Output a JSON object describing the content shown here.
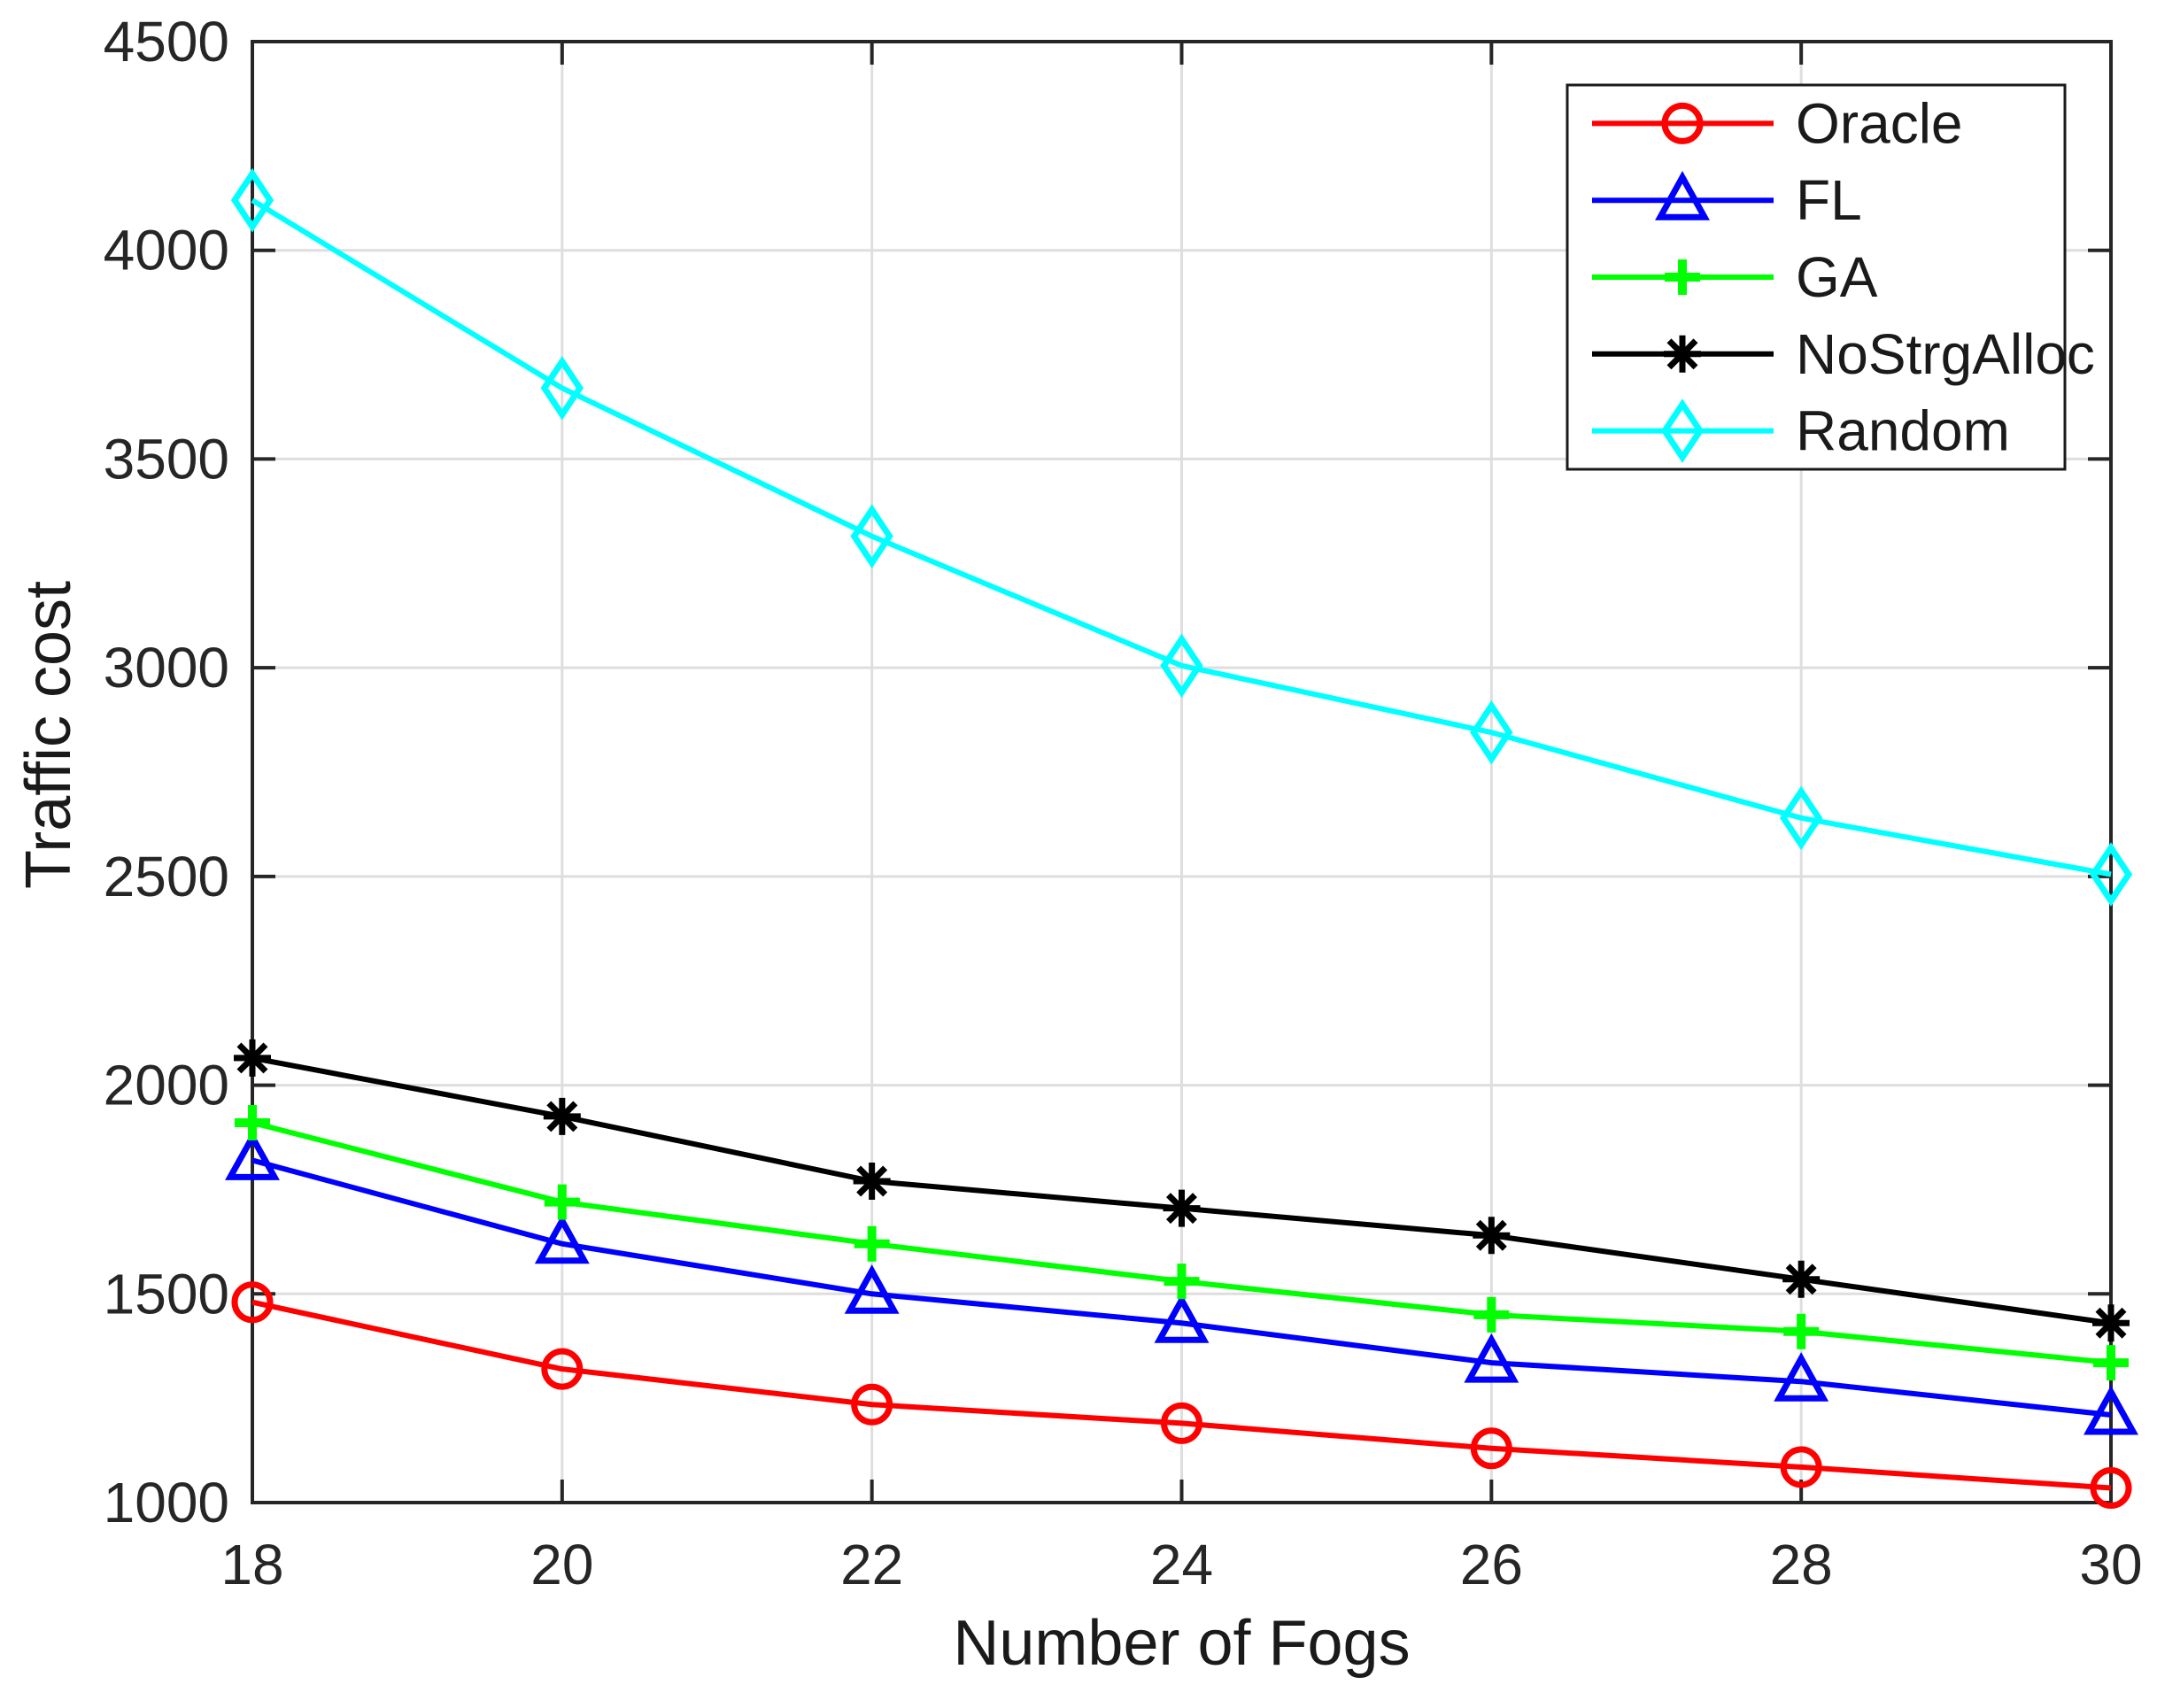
{
  "figure": {
    "background": "#ffffff",
    "axis_color": "#262626",
    "grid_color": "#dedede",
    "tick_label_color": "#262626",
    "label_color": "#1a1a1a",
    "legend_border_color": "#1a1a1a",
    "legend_background": "#ffffff"
  },
  "chart_data": {
    "type": "line",
    "title": "",
    "xlabel": "Number of Fogs",
    "ylabel": "Traffic cost",
    "x": [
      18,
      20,
      22,
      24,
      26,
      28,
      30
    ],
    "xlim": [
      18,
      30
    ],
    "ylim": [
      1000,
      4500
    ],
    "xticks": [
      18,
      20,
      22,
      24,
      26,
      28,
      30
    ],
    "yticks": [
      1000,
      1500,
      2000,
      2500,
      3000,
      3500,
      4000,
      4500
    ],
    "grid": true,
    "legend_position": "top-right",
    "series": [
      {
        "name": "Oracle",
        "color": "#ff0000",
        "marker": "circle",
        "values": [
          1480,
          1320,
          1235,
          1190,
          1130,
          1085,
          1035
        ]
      },
      {
        "name": "FL",
        "color": "#0000ff",
        "marker": "triangle",
        "values": [
          1820,
          1620,
          1500,
          1430,
          1335,
          1290,
          1210
        ]
      },
      {
        "name": "GA",
        "color": "#00ff00",
        "marker": "plus",
        "values": [
          1910,
          1720,
          1620,
          1530,
          1450,
          1410,
          1335
        ]
      },
      {
        "name": "NoStrgAlloc",
        "color": "#000000",
        "marker": "asterisk",
        "values": [
          2065,
          1925,
          1770,
          1705,
          1640,
          1535,
          1430
        ]
      },
      {
        "name": "Random",
        "color": "#00ffff",
        "marker": "diamond",
        "values": [
          4120,
          3670,
          3315,
          3005,
          2845,
          2640,
          2505
        ]
      }
    ]
  }
}
